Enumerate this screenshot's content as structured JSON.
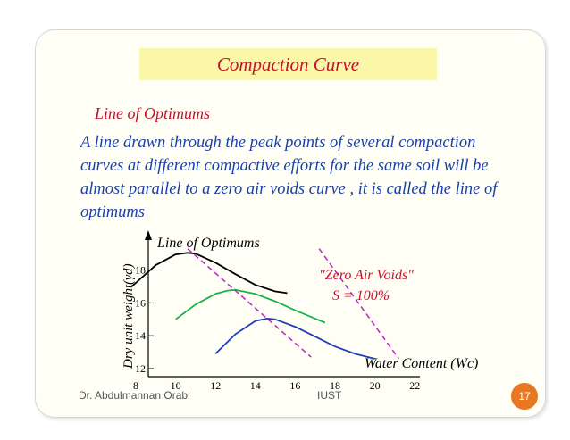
{
  "slide": {
    "title": "Compaction Curve",
    "subheading": "Line of  Optimums",
    "paragraph": "A line drawn through the peak points of  several compaction curves at different compactive efforts for the same soil will be almost parallel to a zero air voids curve , it is called the line of  optimums",
    "footer_author": "Dr. Abdulmannan Orabi",
    "footer_institution": "IUST",
    "page_number": "17"
  },
  "colors": {
    "title_text": "#c8102e",
    "title_bg": "#fbf7a9",
    "body_text": "#1a3fa8",
    "badge": "#e87722",
    "optimum_line": "#c020c8"
  },
  "chart_data": {
    "type": "line",
    "ylabel": "Dry unit weight(γd)",
    "xlabel": "Water Content (Wc)",
    "annotations": {
      "line_of_optimums": "Line of  Optimums",
      "zav_label": "\"Zero Air Voids\"",
      "saturation": "S = 100%"
    },
    "x_ticks": [
      "8",
      "10",
      "12",
      "14",
      "16",
      "18",
      "20",
      "22"
    ],
    "y_ticks": [
      "12",
      "14",
      "16",
      "18"
    ],
    "xlim": [
      8,
      22
    ],
    "ylim": [
      12,
      19.5
    ],
    "series": [
      {
        "color": "#000000",
        "x": [
          7.8,
          9,
          10,
          10.6,
          11,
          12,
          13,
          14,
          15,
          15.6
        ],
        "y": [
          17.0,
          18.3,
          18.95,
          19.05,
          19.0,
          18.45,
          17.75,
          17.1,
          16.7,
          16.6
        ]
      },
      {
        "color": "#19b34a",
        "x": [
          10,
          11,
          12,
          12.6,
          13,
          14,
          15,
          16,
          17,
          17.5
        ],
        "y": [
          15.0,
          15.9,
          16.55,
          16.75,
          16.8,
          16.55,
          16.1,
          15.55,
          15.05,
          14.8
        ]
      },
      {
        "color": "#1d3fb8",
        "x": [
          12,
          13,
          14,
          14.6,
          15,
          16,
          17,
          18,
          19,
          20
        ],
        "y": [
          12.9,
          14.1,
          14.9,
          15.05,
          15.0,
          14.55,
          13.95,
          13.35,
          12.9,
          12.6
        ]
      },
      {
        "color": "#c020c8",
        "dashed": true,
        "x": [
          10.6,
          16.8
        ],
        "y": [
          19.3,
          12.7
        ]
      },
      {
        "color": "#c020c8",
        "dashed": true,
        "x": [
          17.2,
          21.2
        ],
        "y": [
          19.3,
          12.6
        ]
      }
    ]
  }
}
